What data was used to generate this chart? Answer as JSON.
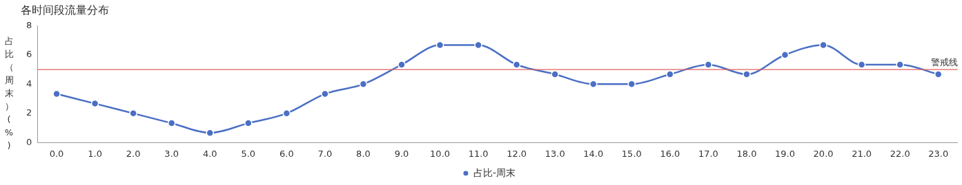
{
  "chart_data": {
    "type": "line",
    "title": "各时间段流量分布",
    "ylabel": "占比（周末）(%)",
    "categories": [
      "0.0",
      "1.0",
      "2.0",
      "3.0",
      "4.0",
      "5.0",
      "6.0",
      "7.0",
      "8.0",
      "9.0",
      "10.0",
      "11.0",
      "12.0",
      "13.0",
      "14.0",
      "15.0",
      "16.0",
      "17.0",
      "18.0",
      "19.0",
      "20.0",
      "21.0",
      "22.0",
      "23.0"
    ],
    "series": [
      {
        "name": "占比-周末",
        "color": "#4a6fc4",
        "values": [
          3.33,
          2.67,
          2.0,
          1.33,
          0.67,
          1.33,
          2.0,
          3.33,
          4.0,
          5.33,
          6.67,
          6.67,
          5.33,
          4.67,
          4.0,
          4.0,
          4.67,
          5.33,
          4.67,
          6.0,
          6.67,
          5.33,
          5.33,
          4.67
        ]
      }
    ],
    "ylim": [
      0,
      8
    ],
    "yticks": [
      0,
      2,
      4,
      6,
      8
    ],
    "grid": false,
    "legend": "bottom",
    "marker": "circle",
    "line_style": "solid",
    "ref_lines": [
      {
        "axis": "y",
        "value": 5,
        "label": "警戒线",
        "color": "#e06060"
      }
    ]
  }
}
